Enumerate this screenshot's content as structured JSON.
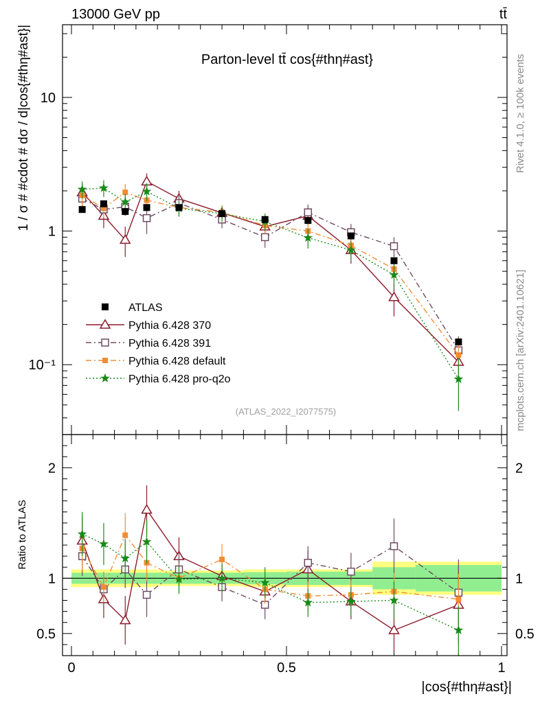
{
  "header": {
    "left": "13000 GeV pp",
    "right": "tt̄",
    "title": "Parton-level tt̄ cos{#thη#ast}",
    "analysis_id": "(ATLAS_2022_I2077575)",
    "side_top": "Rivet 4.1.0, ≥ 100k events",
    "side_bottom": "mcplots.cern.ch [arXiv:2401.10621]"
  },
  "main": {
    "ylabel": "1 / σ # #cdot # dσ / d|cos{#thη#ast}|"
  },
  "ratio": {
    "ylabel": "Ratio to ATLAS"
  },
  "colors": {
    "atlas": "#000000",
    "p370": "#8b1a2b",
    "p391": "#6e4a62",
    "pdef": "#f28c33",
    "pq2o": "#1a8a1a",
    "band_inner": "#90ee90",
    "band_outer": "#ffff80"
  },
  "chart_data": {
    "type": "scatter",
    "xlabel": "|cos{#thη#ast}|",
    "xlim": [
      0,
      1
    ],
    "x_ticks": [
      "0",
      "0.5",
      "1"
    ],
    "main": {
      "yscale": "log",
      "ylim": [
        0.03,
        35
      ],
      "y_ticks": [
        "10⁻¹",
        "1",
        "10"
      ],
      "y_tick_values": [
        0.1,
        1,
        10
      ]
    },
    "ratio_panel": {
      "ylim": [
        0.3,
        2.3
      ],
      "y_ticks": [
        "0.5",
        "1",
        "2"
      ],
      "y_tick_values": [
        0.5,
        1,
        2
      ]
    },
    "bin_edges": [
      0,
      0.05,
      0.1,
      0.15,
      0.2,
      0.3,
      0.4,
      0.5,
      0.6,
      0.7,
      0.8,
      1.0
    ],
    "x": [
      0.025,
      0.075,
      0.125,
      0.175,
      0.25,
      0.35,
      0.45,
      0.55,
      0.65,
      0.75,
      0.9
    ],
    "data": {
      "name": "ATLAS",
      "values": [
        1.45,
        1.6,
        1.4,
        1.5,
        1.5,
        1.35,
        1.22,
        1.2,
        0.92,
        0.6,
        0.148
      ],
      "band_inner": [
        0.05,
        0.05,
        0.05,
        0.05,
        0.05,
        0.05,
        0.055,
        0.06,
        0.06,
        0.1,
        0.12
      ],
      "band_outer": [
        0.08,
        0.08,
        0.08,
        0.08,
        0.07,
        0.07,
        0.08,
        0.08,
        0.08,
        0.15,
        0.15
      ]
    },
    "series": [
      {
        "name": "Pythia 6.428 370",
        "marker": "triangle-open",
        "line": "solid",
        "values": [
          1.95,
          1.3,
          0.86,
          2.35,
          1.75,
          1.37,
          1.08,
          1.3,
          0.72,
          0.32,
          0.105
        ],
        "errors": [
          0.3,
          0.25,
          0.22,
          0.35,
          0.25,
          0.18,
          0.17,
          0.2,
          0.15,
          0.09,
          0.03
        ],
        "ratio": [
          1.34,
          0.81,
          0.62,
          1.62,
          1.2,
          1.02,
          0.88,
          1.08,
          0.79,
          0.53,
          0.76
        ],
        "ratio_err": [
          0.22,
          0.17,
          0.22,
          0.22,
          0.17,
          0.13,
          0.14,
          0.17,
          0.16,
          0.19,
          0.35
        ]
      },
      {
        "name": "Pythia 6.428 391",
        "marker": "square-open",
        "line": "dashdot",
        "values": [
          1.75,
          1.45,
          1.52,
          1.25,
          1.62,
          1.22,
          0.9,
          1.38,
          0.98,
          0.77,
          0.128
        ],
        "errors": [
          0.25,
          0.22,
          0.22,
          0.3,
          0.22,
          0.17,
          0.15,
          0.2,
          0.15,
          0.13,
          0.035
        ],
        "ratio": [
          1.2,
          0.9,
          1.08,
          0.85,
          1.08,
          0.92,
          0.76,
          1.14,
          1.06,
          1.29,
          0.87
        ],
        "ratio_err": [
          0.18,
          0.15,
          0.17,
          0.2,
          0.15,
          0.13,
          0.13,
          0.15,
          0.17,
          0.25,
          0.3
        ]
      },
      {
        "name": "Pythia 6.428 default",
        "marker": "square-filled",
        "line": "dashdot",
        "values": [
          1.85,
          1.48,
          1.95,
          1.7,
          1.5,
          1.38,
          1.1,
          1.0,
          0.78,
          0.52,
          0.118
        ],
        "errors": [
          0.3,
          0.22,
          0.3,
          0.25,
          0.2,
          0.18,
          0.15,
          0.15,
          0.12,
          0.1,
          0.03
        ],
        "ratio": [
          1.27,
          0.92,
          1.39,
          1.14,
          1.0,
          1.17,
          0.9,
          0.84,
          0.85,
          0.88,
          0.81
        ],
        "ratio_err": [
          0.2,
          0.14,
          0.2,
          0.17,
          0.13,
          0.14,
          0.13,
          0.13,
          0.13,
          0.17,
          0.23
        ]
      },
      {
        "name": "Pythia 6.428 pro-q2o",
        "marker": "star",
        "line": "dotted",
        "values": [
          2.05,
          2.1,
          1.65,
          1.98,
          1.48,
          1.35,
          1.18,
          0.89,
          0.72,
          0.47,
          0.078
        ],
        "errors": [
          0.3,
          0.3,
          0.25,
          0.3,
          0.2,
          0.18,
          0.17,
          0.15,
          0.12,
          0.1,
          0.033
        ],
        "ratio": [
          1.4,
          1.31,
          1.18,
          1.33,
          0.99,
          1.0,
          0.96,
          0.78,
          0.79,
          0.8,
          0.53
        ],
        "ratio_err": [
          0.2,
          0.19,
          0.17,
          0.2,
          0.13,
          0.13,
          0.14,
          0.13,
          0.13,
          0.17,
          0.22
        ]
      }
    ],
    "legend": {
      "position": "lower-left",
      "entries": [
        "ATLAS",
        "Pythia 6.428 370",
        "Pythia 6.428 391",
        "Pythia 6.428 default",
        "Pythia 6.428 pro-q2o"
      ]
    }
  }
}
